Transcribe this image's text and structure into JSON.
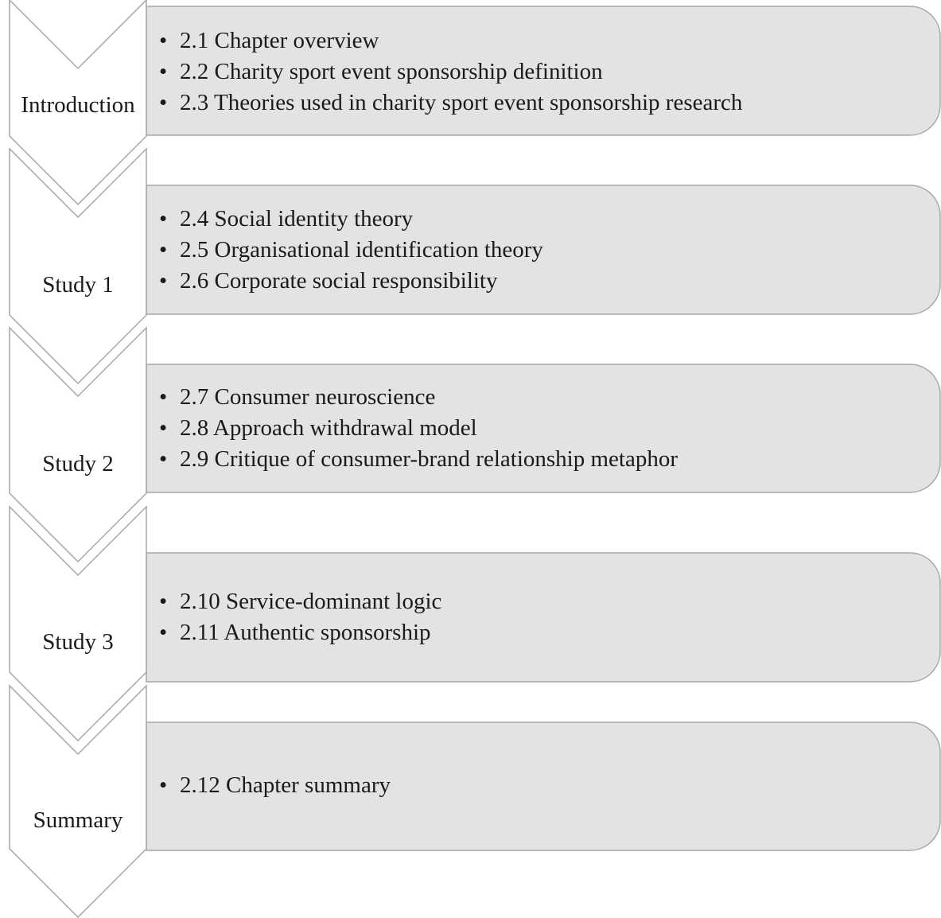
{
  "steps": [
    {
      "label": "Introduction",
      "items": [
        "2.1 Chapter overview",
        "2.2 Charity sport event sponsorship definition",
        "2.3 Theories used in charity sport event sponsorship research"
      ]
    },
    {
      "label": "Study 1",
      "items": [
        "2.4 Social identity theory",
        "2.5 Organisational identification theory",
        "2.6 Corporate social responsibility"
      ]
    },
    {
      "label": "Study 2",
      "items": [
        "2.7 Consumer neuroscience",
        "2.8 Approach withdrawal model",
        "2.9 Critique of consumer-brand relationship metaphor"
      ]
    },
    {
      "label": "Study 3",
      "items": [
        "2.10 Service-dominant logic",
        "2.11 Authentic sponsorship"
      ]
    },
    {
      "label": "Summary",
      "items": [
        "2.12 Chapter summary"
      ]
    }
  ],
  "colors": {
    "panel_fill": "#e3e3e3",
    "outline": "#a6a6a6",
    "text": "#1a1a1a"
  }
}
